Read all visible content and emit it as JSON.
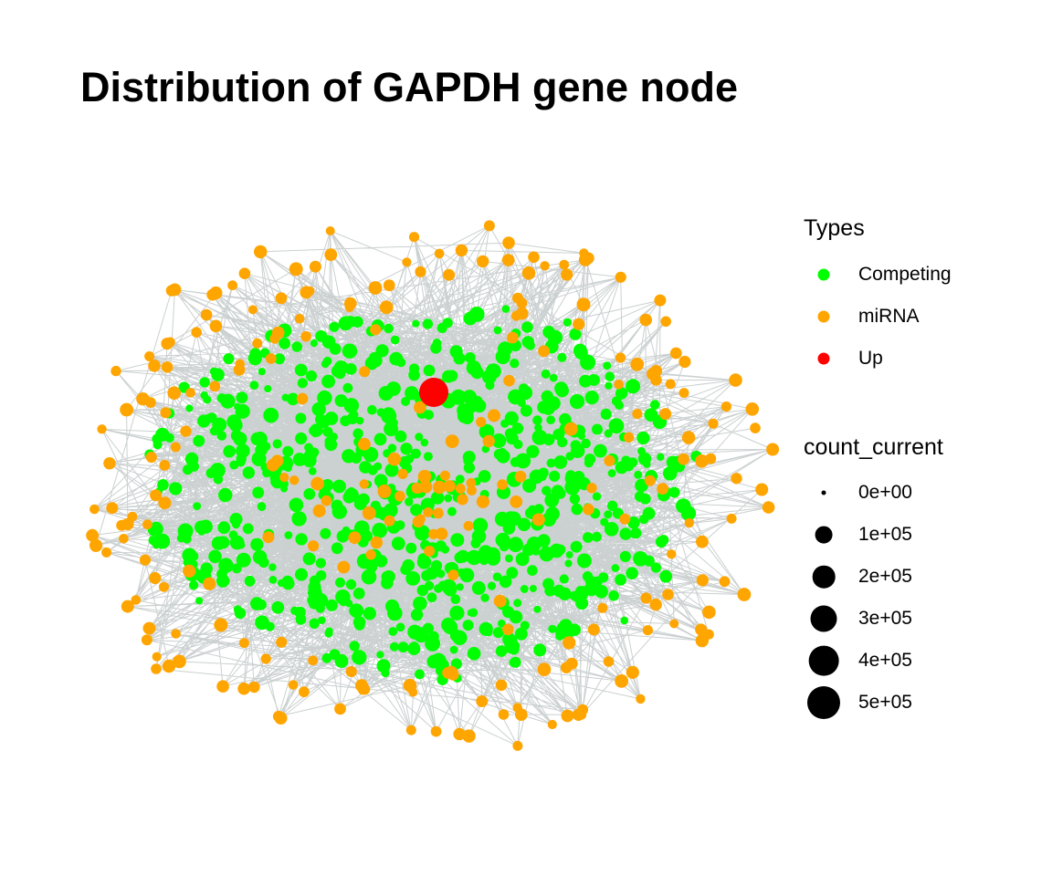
{
  "title": "Distribution of GAPDH gene node",
  "colors": {
    "Competing": "#00ff00",
    "miRNA": "#ffa500",
    "Up": "#ff0000",
    "edge": "#8c9696",
    "size_key": "#000000"
  },
  "legend_types": {
    "title": "Types",
    "items": [
      {
        "label": "Competing",
        "color": "#00ff00"
      },
      {
        "label": "miRNA",
        "color": "#ffa500"
      },
      {
        "label": "Up",
        "color": "#ff0000"
      }
    ]
  },
  "legend_size": {
    "title": "count_current",
    "items": [
      {
        "label": "0e+00",
        "value": 0
      },
      {
        "label": "1e+05",
        "value": 100000
      },
      {
        "label": "2e+05",
        "value": 200000
      },
      {
        "label": "3e+05",
        "value": 300000
      },
      {
        "label": "4e+05",
        "value": 400000
      },
      {
        "label": "5e+05",
        "value": 500000
      }
    ]
  },
  "chart_data": {
    "type": "network",
    "node_types": [
      "Competing",
      "miRNA",
      "Up"
    ],
    "highlighted_node": {
      "type": "Up"
    },
    "size_variable": "count_current",
    "size_breaks": [
      0,
      100000,
      200000,
      300000,
      400000,
      500000
    ],
    "approx_node_counts": {
      "Competing": 700,
      "miRNA": 260,
      "Up": 1
    },
    "axes": "none",
    "grid": false,
    "legend_position": "right"
  }
}
